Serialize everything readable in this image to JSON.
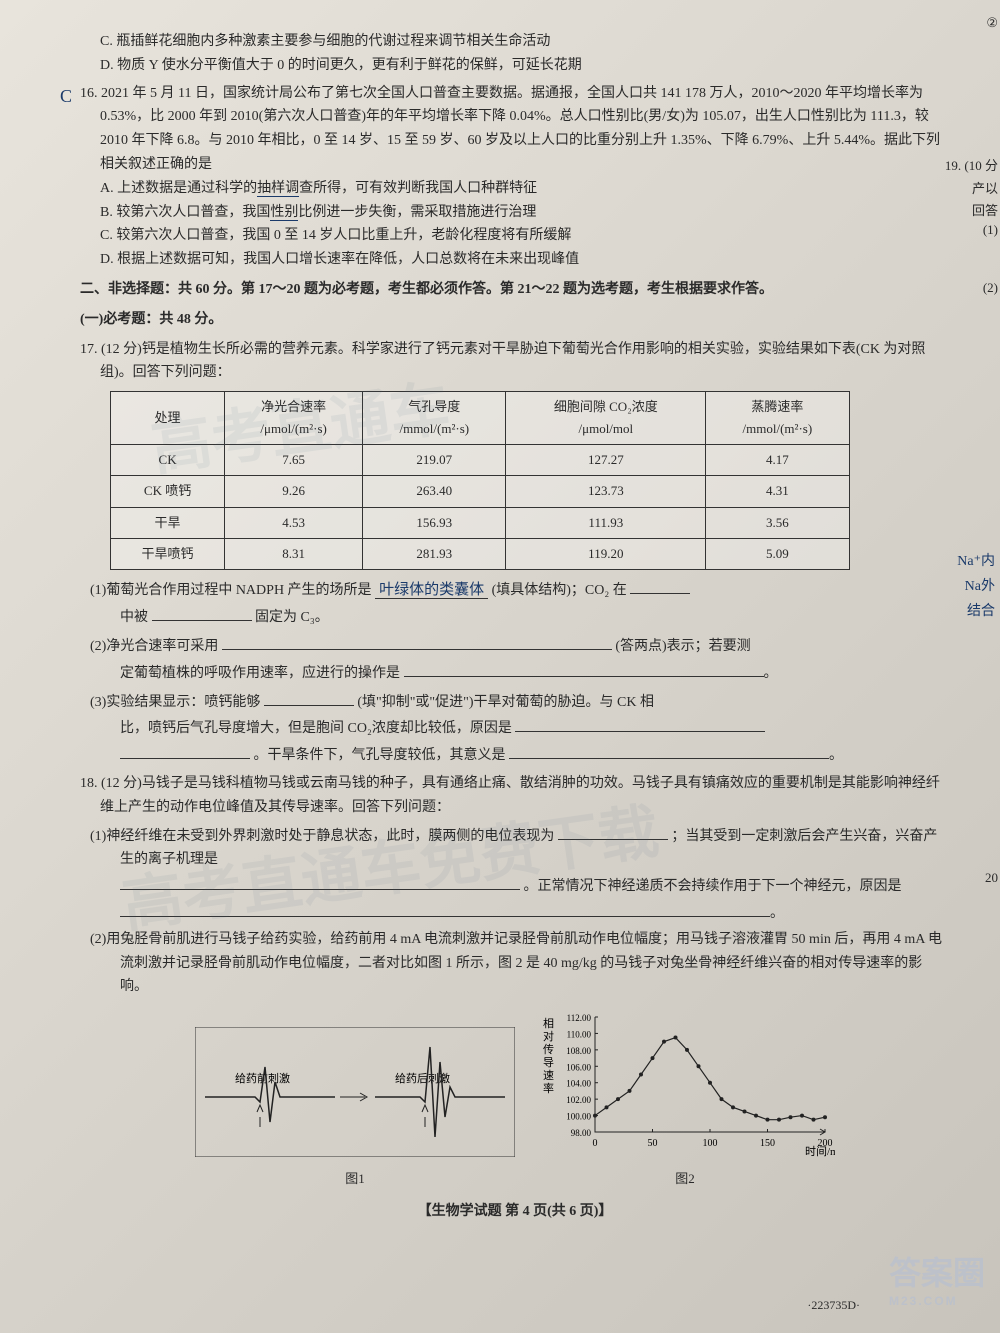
{
  "q15_options": {
    "c": "C. 瓶插鲜花细胞内多种激素主要参与细胞的代谢过程来调节相关生命活动",
    "d": "D. 物质 Y 使水分平衡值大于 0 的时间更久，更有利于鲜花的保鲜，可延长花期"
  },
  "q16": {
    "num": "16.",
    "stem": "2021 年 5 月 11 日，国家统计局公布了第七次全国人口普查主要数据。据通报，全国人口共 141 178 万人，2010～2020 年平均增长率为 0.53%，比 2000 年到 2010(第六次人口普查)年的年平均增长率下降 0.04%。总人口性别比(男/女)为 105.07，出生人口性别比为 111.3，较 2010 年下降 6.8。与 2010 年相比，0 至 14 岁、15 至 59 岁、60 岁及以上人口的比重分别上升 1.35%、下降 6.79%、上升 5.44%。据此下列相关叙述正确的是",
    "a": "A. 上述数据是通过科学的抽样调查所得，可有效判断我国人口种群特征",
    "b": "B. 较第六次人口普查，我国性别比例进一步失衡，需采取措施进行治理",
    "c": "C. 较第六次人口普查，我国 0 至 14 岁人口比重上升，老龄化程度将有所缓解",
    "d": "D. 根据上述数据可知，我国人口增长速率在降低，人口总数将在未来出现峰值"
  },
  "section2": {
    "title": "二、非选择题：共 60 分。第 17～20 题为必考题，考生都必须作答。第 21～22 题为选考题，考生根据要求作答。",
    "sub": "(一)必考题：共 48 分。"
  },
  "q17": {
    "num": "17.",
    "stem": "(12 分)钙是植物生长所必需的营养元素。科学家进行了钙元素对干旱胁迫下葡萄光合作用影响的相关实验，实验结果如下表(CK 为对照组)。回答下列问题：",
    "table": {
      "headers": [
        "处理",
        "净光合速率\n/μmol/(m²·s)",
        "气孔导度\n/mmol/(m²·s)",
        "细胞间隙 CO₂浓度\n/μmol/mol",
        "蒸腾速率\n/mmol/(m²·s)"
      ],
      "rows": [
        [
          "CK",
          "7.65",
          "219.07",
          "127.27",
          "4.17"
        ],
        [
          "CK 喷钙",
          "9.26",
          "263.40",
          "123.73",
          "4.31"
        ],
        [
          "干旱",
          "4.53",
          "156.93",
          "111.93",
          "3.56"
        ],
        [
          "干旱喷钙",
          "8.31",
          "281.93",
          "119.20",
          "5.09"
        ]
      ]
    },
    "sub1_a": "(1)葡萄光合作用过程中 NADPH 产生的场所是",
    "sub1_hw": "叶绿体的类囊体",
    "sub1_b": "(填具体结构)；CO₂ 在",
    "sub1_c": "中被",
    "sub1_d": "固定为 C₃。",
    "sub2_a": "(2)净光合速率可采用",
    "sub2_b": "(答两点)表示；若要测",
    "sub2_c": "定葡萄植株的呼吸作用速率，应进行的操作是",
    "sub3_a": "(3)实验结果显示：喷钙能够",
    "sub3_b": "(填\"抑制\"或\"促进\")干旱对葡萄的胁迫。与 CK 相",
    "sub3_c": "比，喷钙后气孔导度增大，但是胞间 CO₂浓度却比较低，原因是",
    "sub3_d": "。干旱条件下，气孔导度较低，其意义是"
  },
  "q18": {
    "num": "18.",
    "stem": "(12 分)马钱子是马钱科植物马钱或云南马钱的种子，具有通络止痛、散结消肿的功效。马钱子具有镇痛效应的重要机制是其能影响神经纤维上产生的动作电位峰值及其传导速率。回答下列问题：",
    "sub1_a": "(1)神经纤维在未受到外界刺激时处于静息状态，此时，膜两侧的电位表现为",
    "sub1_b": "；当其受到一定刺激后会产生兴奋，兴奋产生的离子机理是",
    "sub1_c": "。正常情况下神经递质不会持续作用于下一个神经元，原因是",
    "sub2": "(2)用兔胫骨前肌进行马钱子给药实验，给药前用 4 mA 电流刺激并记录胫骨前肌动作电位幅度；用马钱子溶液灌胃 50 min 后，再用 4 mA 电流刺激并记录胫骨前肌动作电位幅度，二者对比如图 1 所示，图 2 是 40 mg/kg 的马钱子对兔坐骨神经纤维兴奋的相对传导速率的影响。"
  },
  "chart1": {
    "label_before": "给药前刺激",
    "label_after": "给药后刺激",
    "caption": "图1"
  },
  "chart2": {
    "ylabel": "相对传导速率",
    "xlabel": "时间/m",
    "caption": "图2",
    "yticks": [
      "112.00",
      "110.00",
      "108.00",
      "106.00",
      "104.00",
      "102.00",
      "100.00",
      "98.00"
    ],
    "xticks": [
      "0",
      "50",
      "100",
      "150",
      "200"
    ],
    "data_x": [
      0,
      10,
      20,
      30,
      40,
      50,
      60,
      70,
      80,
      90,
      100,
      110,
      120,
      130,
      140,
      150,
      160,
      170,
      180,
      190,
      200
    ],
    "data_y": [
      100,
      101,
      102,
      103,
      105,
      107,
      109,
      109.5,
      108,
      106,
      104,
      102,
      101,
      100.5,
      100,
      99.5,
      99.5,
      99.8,
      100,
      99.5,
      99.8
    ],
    "line_color": "#222222",
    "marker_color": "#222222",
    "bg_color": "#e0dcd4"
  },
  "footer": "【生物学试题  第 4 页(共 6 页)】",
  "page_id": "·223735D·",
  "edge": {
    "circled2": "②",
    "q19": "19. (10 分",
    "q19b": "产以",
    "q19c": "回答",
    "q19d": "(1)",
    "q19e": "(2)",
    "na1": "Na⁺内",
    "na2": "Na外",
    "na3": "结合",
    "q20": "20"
  },
  "handwritten_answer": "C",
  "logo": "答案圈",
  "logo_sub": "M23.COM"
}
